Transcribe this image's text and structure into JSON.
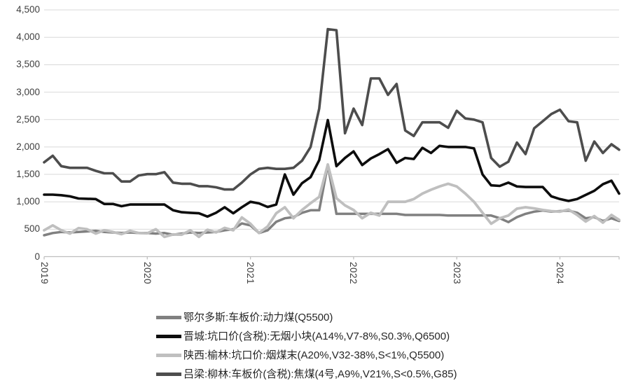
{
  "chart": {
    "background": "#ffffff",
    "grid_color": "#d9d9d9",
    "axis_color": "#bfbfbf",
    "label_color": "#404040",
    "y_axis": {
      "min": 0,
      "max": 4500,
      "step": 500,
      "tick_labels": [
        "0",
        "500",
        "1,000",
        "1,500",
        "2,000",
        "2,500",
        "3,000",
        "3,500",
        "4,000",
        "4,500"
      ]
    },
    "x_axis": {
      "tick_labels": [
        "2019",
        "2020",
        "2021",
        "2022",
        "2023",
        "2024"
      ]
    }
  },
  "chart_data": {
    "type": "line",
    "title": "",
    "xlabel": "",
    "ylabel": "",
    "ylim": [
      0,
      4500
    ],
    "grid": "horizontal",
    "legend_position": "bottom",
    "x_start": "2019-01",
    "x_freq": "monthly",
    "x_points": 68,
    "x_year_ticks": [
      "2019",
      "2020",
      "2021",
      "2022",
      "2023",
      "2024"
    ],
    "series": [
      {
        "name": "鄂尔多斯:车板价:动力煤(Q5500)",
        "color": "#808080",
        "stroke_width": 3.5,
        "values": [
          390,
          430,
          450,
          440,
          450,
          460,
          470,
          450,
          440,
          430,
          440,
          430,
          430,
          420,
          430,
          400,
          420,
          440,
          430,
          440,
          450,
          480,
          500,
          605,
          570,
          430,
          480,
          635,
          700,
          720,
          800,
          845,
          845,
          1680,
          780,
          780,
          780,
          780,
          780,
          780,
          780,
          780,
          760,
          760,
          760,
          760,
          760,
          750,
          750,
          750,
          750,
          750,
          750,
          700,
          630,
          720,
          780,
          820,
          840,
          820,
          830,
          840,
          800,
          700,
          720,
          650,
          700,
          650
        ]
      },
      {
        "name": "晋城:坑口价(含税):无烟小块(A14%,V7-8%,S0.3%,Q6500)",
        "color": "#0d0d0d",
        "stroke_width": 3.6,
        "values": [
          1130,
          1130,
          1120,
          1100,
          1060,
          1055,
          1050,
          960,
          960,
          920,
          950,
          950,
          950,
          950,
          950,
          845,
          810,
          800,
          790,
          730,
          800,
          900,
          790,
          900,
          1000,
          970,
          905,
          950,
          1500,
          1130,
          1340,
          1450,
          1760,
          2490,
          1650,
          1800,
          1920,
          1670,
          1790,
          1870,
          1960,
          1710,
          1800,
          1780,
          1985,
          1890,
          2020,
          2000,
          2000,
          2000,
          1975,
          1500,
          1300,
          1290,
          1350,
          1280,
          1270,
          1270,
          1270,
          1100,
          1050,
          1015,
          1050,
          1125,
          1200,
          1320,
          1385,
          1150
        ]
      },
      {
        "name": "陕西:榆林:坑口价:烟煤末(A20%,V32-38%,S<1%,Q5500)",
        "color": "#bfbfbf",
        "stroke_width": 3.8,
        "values": [
          480,
          570,
          480,
          420,
          520,
          500,
          420,
          480,
          450,
          410,
          470,
          430,
          425,
          500,
          360,
          405,
          400,
          480,
          360,
          490,
          440,
          525,
          480,
          715,
          600,
          430,
          550,
          790,
          900,
          700,
          850,
          975,
          1090,
          1680,
          1065,
          935,
          850,
          700,
          800,
          750,
          1000,
          1000,
          1000,
          1050,
          1150,
          1220,
          1280,
          1330,
          1280,
          1150,
          1000,
          800,
          600,
          700,
          750,
          875,
          900,
          880,
          850,
          830,
          820,
          860,
          760,
          640,
          740,
          620,
          760,
          670
        ]
      },
      {
        "name": "吕梁:柳林:车板价(含税):焦煤(4号,A9%,V21%,S<0.5%,G85)",
        "color": "#4d4d4d",
        "stroke_width": 3.6,
        "values": [
          1720,
          1840,
          1650,
          1620,
          1620,
          1620,
          1565,
          1520,
          1520,
          1370,
          1370,
          1480,
          1505,
          1505,
          1540,
          1350,
          1330,
          1330,
          1285,
          1285,
          1265,
          1225,
          1225,
          1350,
          1500,
          1600,
          1620,
          1600,
          1600,
          1620,
          1750,
          2000,
          2700,
          4150,
          4130,
          2250,
          2700,
          2400,
          3250,
          3250,
          2950,
          3150,
          2300,
          2200,
          2450,
          2450,
          2450,
          2350,
          2660,
          2520,
          2500,
          2450,
          1800,
          1640,
          1730,
          2080,
          1870,
          2340,
          2470,
          2600,
          2680,
          2470,
          2450,
          1750,
          2100,
          1890,
          2050,
          1950
        ]
      }
    ]
  }
}
